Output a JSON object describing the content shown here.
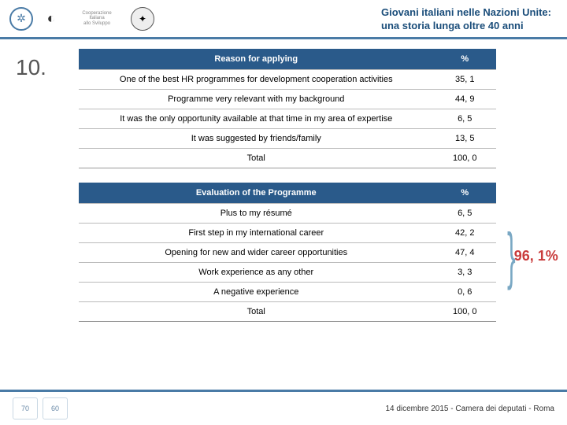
{
  "header": {
    "title_line1": "Giovani italiani nelle Nazioni Unite:",
    "title_line2": "una storia lunga oltre 40 anni"
  },
  "section_number": "10.",
  "table1": {
    "header_label": "Reason for applying",
    "header_pct": "%",
    "rows": [
      {
        "label": "One of the best HR programmes for development cooperation activities",
        "value": "35, 1"
      },
      {
        "label": "Programme very relevant with my background",
        "value": "44, 9"
      },
      {
        "label": "It was the only opportunity available at that time in my area of expertise",
        "value": "6, 5"
      },
      {
        "label": "It was suggested by friends/family",
        "value": "13, 5"
      },
      {
        "label": "Total",
        "value": "100, 0"
      }
    ]
  },
  "table2": {
    "header_label": "Evaluation of the Programme",
    "header_pct": "%",
    "rows": [
      {
        "label": "Plus to my résumé",
        "value": "6, 5"
      },
      {
        "label": "First step in my international career",
        "value": "42, 2"
      },
      {
        "label": "Opening for new and wider career opportunities",
        "value": "47, 4"
      },
      {
        "label": "Work experience as any other",
        "value": "3, 3"
      },
      {
        "label": "A negative experience",
        "value": "0, 6"
      },
      {
        "label": "Total",
        "value": "100, 0"
      }
    ]
  },
  "callout_pct": "96, 1%",
  "footer": {
    "badge1": "70",
    "badge2": "60",
    "text": "14 dicembre 2015 - Camera dei deputati - Roma"
  },
  "colors": {
    "header_blue": "#2a5a8a",
    "border_blue": "#4a7ba6",
    "title_blue": "#1a4d7a",
    "callout_red": "#c93b3b",
    "bracket_blue": "#7aa8c4"
  }
}
